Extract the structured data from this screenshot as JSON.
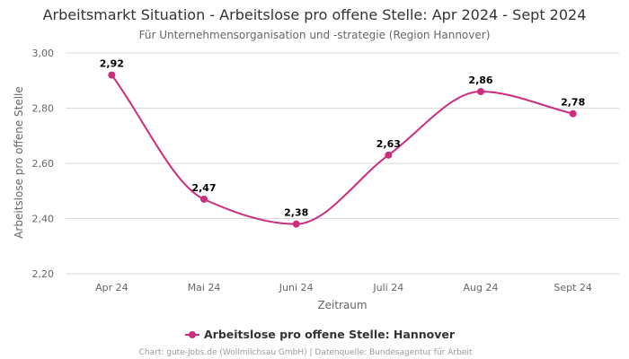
{
  "chart_data": {
    "type": "line",
    "title": "Arbeitsmarkt Situation - Arbeitslose pro offene Stelle: Apr 2024 - Sept 2024",
    "subtitle": "Für Unternehmensorganisation und -strategie (Region Hannover)",
    "xlabel": "Zeitraum",
    "ylabel": "Arbeitslose pro offene Stelle",
    "categories": [
      "Apr 24",
      "Mai 24",
      "Juni 24",
      "Juli 24",
      "Aug 24",
      "Sept 24"
    ],
    "series": [
      {
        "name": "Arbeitslose pro offene Stelle: Hannover",
        "values": [
          2.92,
          2.47,
          2.38,
          2.63,
          2.86,
          2.78
        ],
        "labels": [
          "2,92",
          "2,47",
          "2,38",
          "2,63",
          "2,86",
          "2,78"
        ],
        "color": "#cc2e7d"
      }
    ],
    "ylim": [
      2.2,
      3.0
    ],
    "yticks": [
      2.2,
      2.4,
      2.6,
      2.8,
      3.0
    ],
    "ytick_labels": [
      "2,20",
      "2,40",
      "2,60",
      "2,80",
      "3,00"
    ],
    "grid": true,
    "legend": "bottom-center",
    "credits": "Chart: gute-jobs.de (Wollmilchsau GmbH) | Datenquelle: Bundesagentur für Arbeit"
  }
}
